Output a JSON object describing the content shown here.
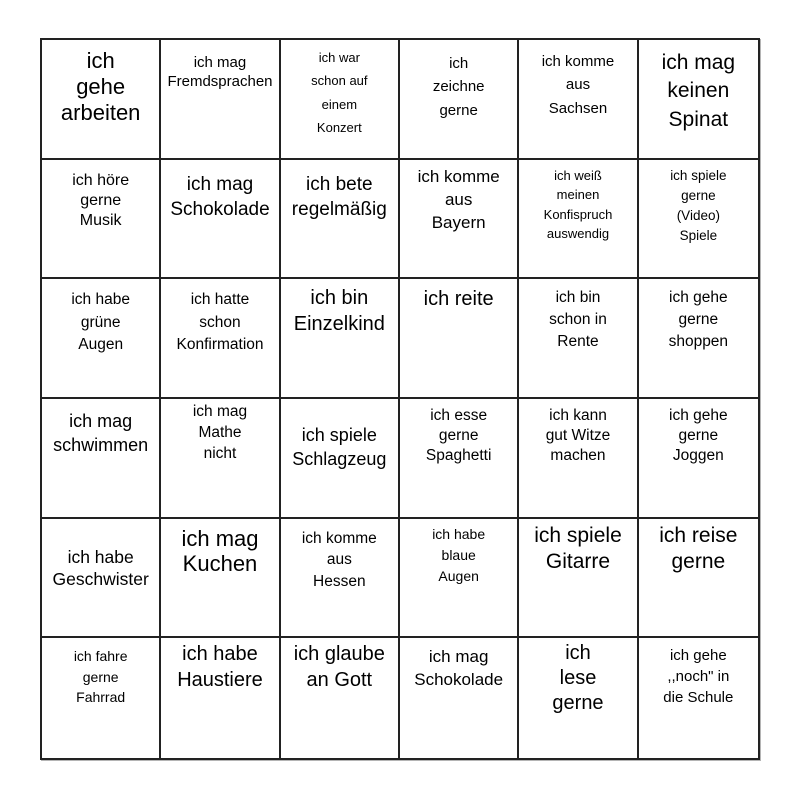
{
  "page": {
    "background": "#ffffff"
  },
  "board": {
    "kind": "bingo-card",
    "rows": 6,
    "cols": 6,
    "grid_color": "#222222",
    "text_color": "#000000",
    "cells": [
      {
        "text": "ich\ngehe\narbeiten",
        "size": 22,
        "pad": 8,
        "lh": 1.18
      },
      {
        "text": "ich mag\nFremdsprachen",
        "size": 15,
        "pad": 14,
        "lh": 1.25
      },
      {
        "text": "ich war\nschon auf\neinem\nKonzert",
        "size": 13,
        "pad": 6,
        "lh": 1.8
      },
      {
        "text": "ich\nzeichne\ngerne",
        "size": 15,
        "pad": 12,
        "lh": 1.55
      },
      {
        "text": "ich komme\naus\nSachsen",
        "size": 15,
        "pad": 10,
        "lh": 1.55
      },
      {
        "text": "ich mag\nkeinen\nSpinat",
        "size": 21,
        "pad": 9,
        "lh": 1.35
      },
      {
        "text": "ich höre\ngerne\nMusik",
        "size": 16,
        "pad": 11,
        "lh": 1.25
      },
      {
        "text": "ich mag\nSchokolade",
        "size": 19,
        "pad": 12,
        "lh": 1.35
      },
      {
        "text": "ich bete\nregelmäßig",
        "size": 19,
        "pad": 12,
        "lh": 1.35
      },
      {
        "text": "ich komme\naus\nBayern",
        "size": 17,
        "pad": 6,
        "lh": 1.35
      },
      {
        "text": "ich weiß\nmeinen\nKonfispruch\nauswendig",
        "size": 13,
        "pad": 6,
        "lh": 1.5
      },
      {
        "text": "ich spiele\ngerne\n(Video)\nSpiele",
        "size": 13.5,
        "pad": 6,
        "lh": 1.5
      },
      {
        "text": "ich habe\ngrüne\nAugen",
        "size": 15.5,
        "pad": 10,
        "lh": 1.45
      },
      {
        "text": "ich hatte\nschon\nKonfirmation",
        "size": 15.5,
        "pad": 10,
        "lh": 1.45
      },
      {
        "text": "ich bin\nEinzelkind",
        "size": 20,
        "pad": 6,
        "lh": 1.3
      },
      {
        "text": "ich reite",
        "size": 20,
        "pad": 7,
        "lh": 1.3
      },
      {
        "text": "ich bin\nschon in\nRente",
        "size": 15.5,
        "pad": 8,
        "lh": 1.4
      },
      {
        "text": "ich gehe\ngerne\nshoppen",
        "size": 15.5,
        "pad": 8,
        "lh": 1.4
      },
      {
        "text": "ich mag\nschwimmen",
        "size": 18,
        "pad": 10,
        "lh": 1.35
      },
      {
        "text": "ich mag\nMathe\nnicht",
        "size": 15.5,
        "pad": 3,
        "lh": 1.35
      },
      {
        "text": "ich spiele\nSchlagzeug",
        "size": 18,
        "pad": 24,
        "lh": 1.35
      },
      {
        "text": "ich esse\ngerne\nSpaghetti",
        "size": 15.5,
        "pad": 7,
        "lh": 1.3
      },
      {
        "text": "ich kann\ngut Witze\nmachen",
        "size": 15.5,
        "pad": 7,
        "lh": 1.3
      },
      {
        "text": "ich gehe\ngerne\nJoggen",
        "size": 15.5,
        "pad": 7,
        "lh": 1.3
      },
      {
        "text": "ich habe\nGeschwister",
        "size": 17.5,
        "pad": 28,
        "lh": 1.25
      },
      {
        "text": "ich mag\nKuchen",
        "size": 22,
        "pad": 7,
        "lh": 1.15
      },
      {
        "text": "ich komme\naus\nHessen",
        "size": 15.5,
        "pad": 9,
        "lh": 1.4
      },
      {
        "text": "ich habe\nblaue\nAugen",
        "size": 14,
        "pad": 5,
        "lh": 1.5
      },
      {
        "text": "ich spiele\nGitarre",
        "size": 21,
        "pad": 4,
        "lh": 1.25
      },
      {
        "text": "ich reise\ngerne",
        "size": 21,
        "pad": 4,
        "lh": 1.25
      },
      {
        "text": "ich fahre\ngerne\nFahrrad",
        "size": 14,
        "pad": 8,
        "lh": 1.45
      },
      {
        "text": "ich habe\nHaustiere",
        "size": 20,
        "pad": 3,
        "lh": 1.3
      },
      {
        "text": "ich glaube\nan Gott",
        "size": 20,
        "pad": 3,
        "lh": 1.3
      },
      {
        "text": "ich mag\nSchokolade",
        "size": 17,
        "pad": 8,
        "lh": 1.35
      },
      {
        "text": "ich\nlese\ngerne",
        "size": 20,
        "pad": 3,
        "lh": 1.25
      },
      {
        "text": "ich gehe\n,,noch\" in\ndie Schule",
        "size": 15,
        "pad": 7,
        "lh": 1.4
      }
    ]
  }
}
